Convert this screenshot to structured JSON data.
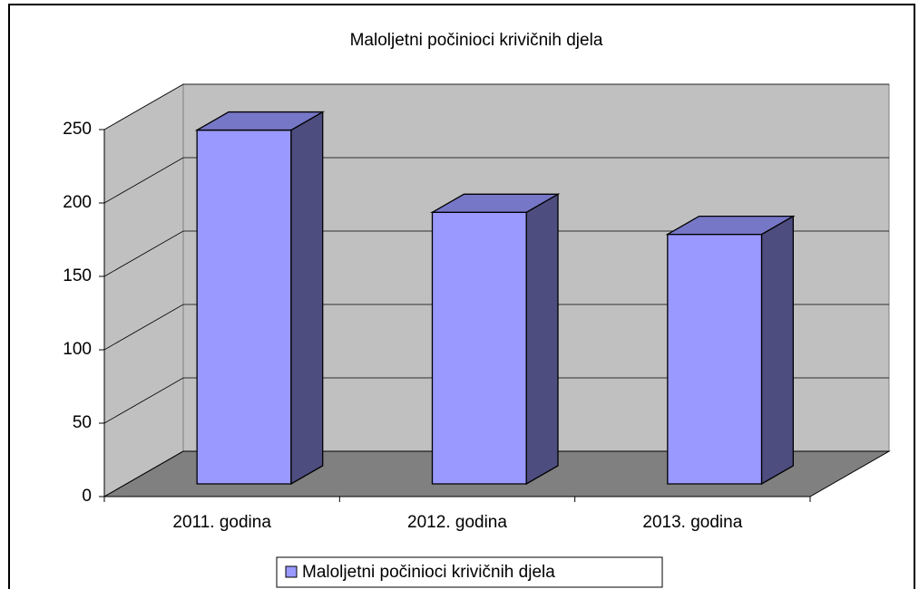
{
  "chart_data": {
    "type": "bar3d",
    "title": "Maloljetni počinioci krivičnih djela",
    "categories": [
      "2011. godina",
      "2012. godina",
      "2013. godina"
    ],
    "series": [
      {
        "name": "Maloljetni počinioci krivičnih djela",
        "color": "#9999ff",
        "values": [
          241,
          185,
          170
        ]
      }
    ],
    "ylim": [
      0,
      250
    ],
    "yticks": [
      0,
      50,
      100,
      150,
      200,
      250
    ],
    "grid": true,
    "legend": "bottom"
  }
}
